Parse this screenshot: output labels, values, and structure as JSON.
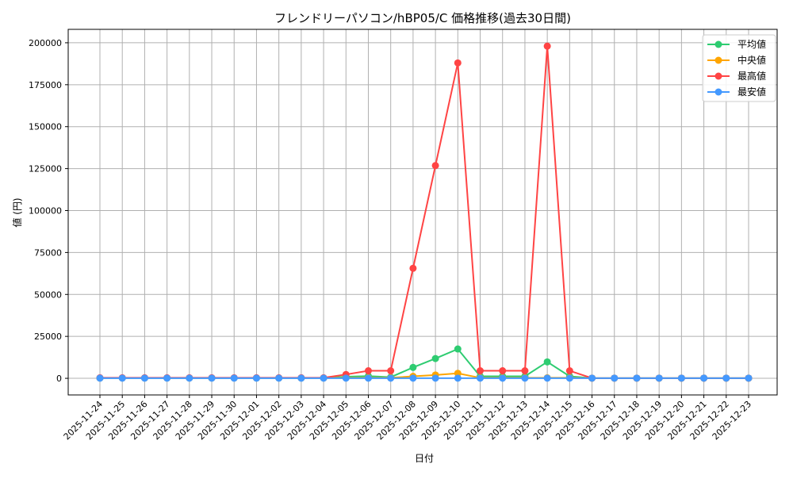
{
  "chart_data": {
    "type": "line",
    "title": "フレンドリーパソコン/hBP05/C 価格推移(過去30日間)",
    "xlabel": "日付",
    "ylabel": "値 (円)",
    "ylim": [
      -9900,
      208000
    ],
    "yticks": [
      0,
      25000,
      50000,
      75000,
      100000,
      125000,
      150000,
      175000,
      200000
    ],
    "grid": true,
    "legend_position": "top-right",
    "x": [
      "2025-11-24",
      "2025-11-25",
      "2025-11-26",
      "2025-11-27",
      "2025-11-28",
      "2025-11-29",
      "2025-11-30",
      "2025-12-01",
      "2025-12-02",
      "2025-12-03",
      "2025-12-04",
      "2025-12-05",
      "2025-12-06",
      "2025-12-07",
      "2025-12-08",
      "2025-12-09",
      "2025-12-10",
      "2025-12-11",
      "2025-12-12",
      "2025-12-13",
      "2025-12-14",
      "2025-12-15",
      "2025-12-16",
      "2025-12-17",
      "2025-12-18",
      "2025-12-19",
      "2025-12-20",
      "2025-12-21",
      "2025-12-22",
      "2025-12-23"
    ],
    "series": [
      {
        "name": "平均値",
        "color": "#2ecc71",
        "values": [
          200,
          200,
          200,
          200,
          200,
          200,
          200,
          200,
          200,
          200,
          200,
          1000,
          1300,
          700,
          6500,
          11800,
          17500,
          1200,
          1200,
          1200,
          9800,
          1200,
          100,
          100,
          100,
          100,
          100,
          100,
          100,
          100
        ]
      },
      {
        "name": "中央値",
        "color": "#ffa500",
        "values": [
          200,
          200,
          200,
          200,
          200,
          200,
          200,
          200,
          200,
          200,
          200,
          300,
          300,
          300,
          1200,
          2000,
          3000,
          300,
          300,
          300,
          300,
          300,
          100,
          100,
          100,
          100,
          100,
          100,
          100,
          100
        ]
      },
      {
        "name": "最高値",
        "color": "#ff4444",
        "values": [
          300,
          300,
          300,
          300,
          300,
          300,
          300,
          300,
          300,
          300,
          300,
          2300,
          4500,
          4500,
          65600,
          126800,
          188000,
          4500,
          4500,
          4500,
          198000,
          4500,
          100,
          100,
          100,
          100,
          100,
          100,
          100,
          100
        ]
      },
      {
        "name": "最安値",
        "color": "#4499ff",
        "values": [
          100,
          100,
          100,
          100,
          100,
          100,
          100,
          100,
          100,
          100,
          100,
          100,
          100,
          100,
          100,
          100,
          100,
          100,
          100,
          100,
          100,
          100,
          100,
          100,
          100,
          100,
          100,
          100,
          100,
          100
        ]
      }
    ]
  }
}
